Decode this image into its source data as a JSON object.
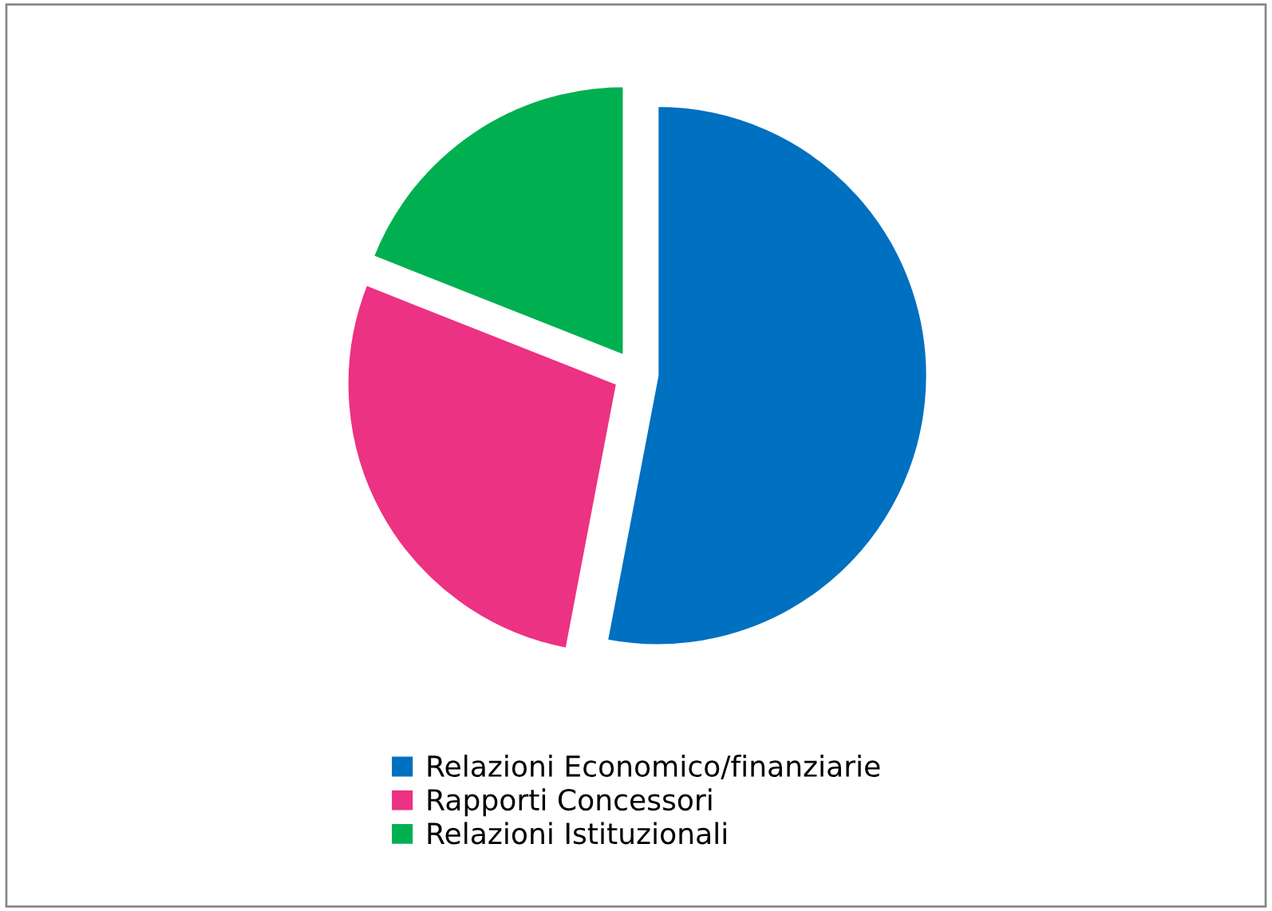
{
  "chart_data": {
    "type": "pie",
    "categories": [
      "Relazioni Economico/finanziarie",
      "Rapporti Concessori",
      "Relazioni Istituzionali"
    ],
    "values": [
      53,
      28,
      19
    ],
    "colors": [
      "#0070c0",
      "#ec3282",
      "#00b050"
    ],
    "legend": "bottom"
  }
}
